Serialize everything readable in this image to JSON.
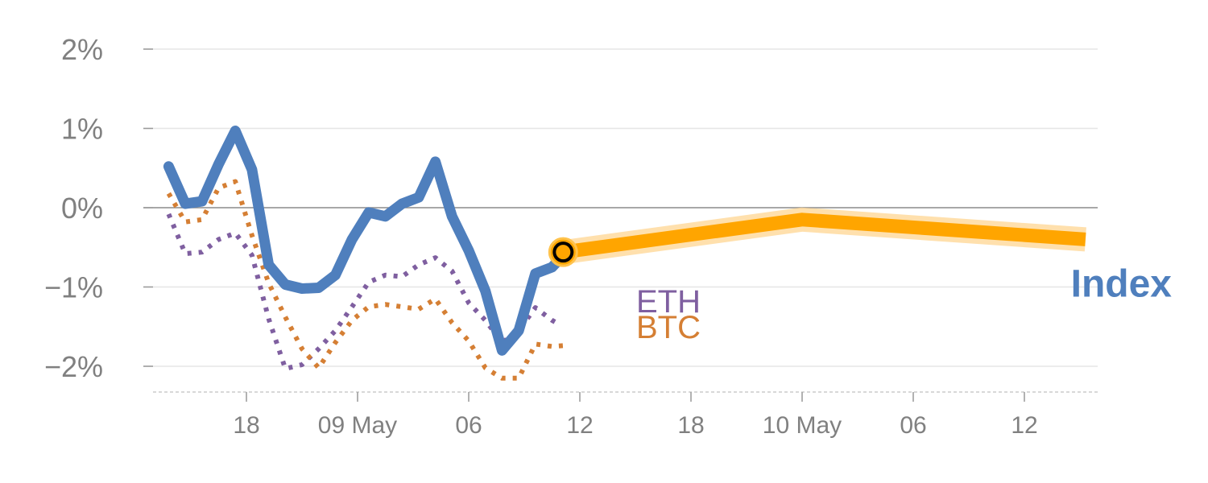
{
  "chart_data": {
    "type": "line",
    "y_unit": "%",
    "ylim": [
      -2.3,
      2
    ],
    "grid": true,
    "y_ticks": [
      {
        "value": 2,
        "label": "2%"
      },
      {
        "value": 1,
        "label": "1%"
      },
      {
        "value": 0,
        "label": "0%"
      },
      {
        "value": -1,
        "label": "−1%"
      },
      {
        "value": -2,
        "label": "−2%"
      }
    ],
    "x_ticks": [
      {
        "x": 4,
        "label": "18"
      },
      {
        "x": 14,
        "label": "09 May"
      },
      {
        "x": 24,
        "label": "06"
      },
      {
        "x": 34,
        "label": "12"
      },
      {
        "x": 44,
        "label": "18"
      },
      {
        "x": 54,
        "label": "10 May"
      },
      {
        "x": 64,
        "label": "06"
      },
      {
        "x": 74,
        "label": "12"
      }
    ],
    "xlim": [
      -3,
      80.5
    ],
    "series": [
      {
        "name": "Index",
        "color": "#4f7fbd",
        "style": "solid",
        "label_y": -0.95,
        "values": [
          [
            -3,
            0.52
          ],
          [
            -1.5,
            0.05
          ],
          [
            0,
            0.08
          ],
          [
            1.5,
            0.55
          ],
          [
            3,
            0.97
          ],
          [
            4.5,
            0.48
          ],
          [
            6,
            -0.72
          ],
          [
            7.5,
            -0.97
          ],
          [
            9,
            -1.02
          ],
          [
            10.5,
            -1.01
          ],
          [
            12,
            -0.85
          ],
          [
            13.5,
            -0.4
          ],
          [
            15,
            -0.06
          ],
          [
            16.5,
            -0.11
          ],
          [
            18,
            0.05
          ],
          [
            19.5,
            0.13
          ],
          [
            21,
            0.58
          ],
          [
            22.5,
            -0.11
          ],
          [
            24,
            -0.54
          ],
          [
            25.5,
            -1.05
          ],
          [
            27,
            -1.8
          ],
          [
            28.5,
            -1.55
          ],
          [
            30,
            -0.83
          ],
          [
            31.5,
            -0.75
          ],
          [
            32.5,
            -0.6
          ]
        ]
      },
      {
        "name": "ETH",
        "color": "#7f5fa0",
        "style": "dotted",
        "label_y": -1.18,
        "values": [
          [
            -3,
            -0.08
          ],
          [
            -1.5,
            -0.58
          ],
          [
            0,
            -0.56
          ],
          [
            1.5,
            -0.4
          ],
          [
            3,
            -0.32
          ],
          [
            4.5,
            -0.6
          ],
          [
            6,
            -1.4
          ],
          [
            7.5,
            -2.03
          ],
          [
            9,
            -1.98
          ],
          [
            10.5,
            -1.78
          ],
          [
            12,
            -1.55
          ],
          [
            13.5,
            -1.25
          ],
          [
            15,
            -0.94
          ],
          [
            16.5,
            -0.85
          ],
          [
            18,
            -0.87
          ],
          [
            19.5,
            -0.72
          ],
          [
            21,
            -0.63
          ],
          [
            22.5,
            -0.8
          ],
          [
            24,
            -1.2
          ],
          [
            25.5,
            -1.42
          ],
          [
            27,
            -1.7
          ],
          [
            28.5,
            -1.55
          ],
          [
            30,
            -1.26
          ],
          [
            31.5,
            -1.42
          ],
          [
            32,
            -1.46
          ]
        ]
      },
      {
        "name": "BTC",
        "color": "#d57f34",
        "style": "dotted",
        "label_y": -1.5,
        "values": [
          [
            -3,
            0.18
          ],
          [
            -1.5,
            -0.18
          ],
          [
            0,
            -0.15
          ],
          [
            1.5,
            0.25
          ],
          [
            3,
            0.33
          ],
          [
            4.5,
            -0.35
          ],
          [
            6,
            -0.95
          ],
          [
            7.5,
            -1.38
          ],
          [
            9,
            -1.78
          ],
          [
            10.5,
            -2.02
          ],
          [
            12,
            -1.7
          ],
          [
            13.5,
            -1.42
          ],
          [
            15,
            -1.25
          ],
          [
            16.5,
            -1.22
          ],
          [
            18,
            -1.25
          ],
          [
            19.5,
            -1.28
          ],
          [
            21,
            -1.15
          ],
          [
            22.5,
            -1.45
          ],
          [
            24,
            -1.68
          ],
          [
            25.5,
            -2.02
          ],
          [
            27,
            -2.15
          ],
          [
            28.5,
            -2.15
          ],
          [
            30,
            -1.72
          ],
          [
            31.5,
            -1.75
          ],
          [
            32.5,
            -1.74
          ]
        ]
      },
      {
        "name": "",
        "color": "#ffa500",
        "style": "band",
        "values": [
          [
            32.5,
            -0.56
          ],
          [
            54,
            -0.15
          ],
          [
            79.5,
            -0.4
          ]
        ]
      }
    ],
    "marker": {
      "x": 32.5,
      "y": -0.56,
      "color": "#ffa500"
    }
  }
}
